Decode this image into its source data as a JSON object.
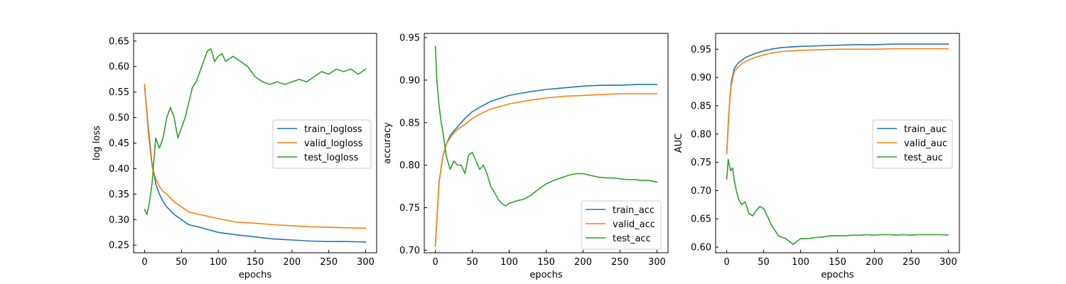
{
  "colors": {
    "blue": "#1f77b4",
    "orange": "#ff7f0e",
    "green": "#2ca02c"
  },
  "chart_data": [
    {
      "type": "line",
      "xlabel": "epochs",
      "ylabel": "log loss",
      "xlim": [
        -15,
        315
      ],
      "ylim": [
        0.235,
        0.665
      ],
      "xticks": [
        0,
        50,
        100,
        150,
        200,
        250,
        300
      ],
      "xtick_labels": [
        "0",
        "50",
        "100",
        "150",
        "200",
        "250",
        "300"
      ],
      "yticks": [
        0.25,
        0.3,
        0.35,
        0.4,
        0.45,
        0.5,
        0.55,
        0.6,
        0.65
      ],
      "ytick_labels": [
        "0.25",
        "0.30",
        "0.35",
        "0.40",
        "0.45",
        "0.50",
        "0.55",
        "0.60",
        "0.65"
      ],
      "legend_position": "center-right",
      "series": [
        {
          "name": "train_logloss",
          "color": "#1f77b4",
          "x": [
            0,
            5,
            10,
            15,
            20,
            25,
            30,
            40,
            50,
            60,
            75,
            100,
            125,
            150,
            175,
            200,
            225,
            250,
            275,
            300
          ],
          "y": [
            0.56,
            0.48,
            0.41,
            0.37,
            0.35,
            0.335,
            0.325,
            0.31,
            0.3,
            0.29,
            0.285,
            0.275,
            0.27,
            0.266,
            0.262,
            0.26,
            0.258,
            0.257,
            0.257,
            0.256
          ]
        },
        {
          "name": "valid_logloss",
          "color": "#ff7f0e",
          "x": [
            0,
            5,
            10,
            15,
            20,
            25,
            30,
            40,
            50,
            60,
            75,
            100,
            125,
            150,
            175,
            200,
            225,
            250,
            275,
            300
          ],
          "y": [
            0.565,
            0.47,
            0.405,
            0.38,
            0.365,
            0.355,
            0.35,
            0.335,
            0.325,
            0.315,
            0.31,
            0.302,
            0.295,
            0.293,
            0.29,
            0.288,
            0.286,
            0.285,
            0.284,
            0.283
          ]
        },
        {
          "name": "test_logloss",
          "color": "#2ca02c",
          "x": [
            0,
            3,
            6,
            10,
            15,
            20,
            25,
            30,
            35,
            40,
            45,
            50,
            55,
            60,
            65,
            70,
            75,
            80,
            85,
            90,
            95,
            100,
            105,
            110,
            115,
            120,
            130,
            140,
            150,
            160,
            170,
            180,
            190,
            200,
            210,
            220,
            230,
            240,
            250,
            260,
            270,
            280,
            290,
            300
          ],
          "y": [
            0.32,
            0.31,
            0.33,
            0.37,
            0.46,
            0.44,
            0.46,
            0.5,
            0.52,
            0.5,
            0.46,
            0.48,
            0.5,
            0.53,
            0.56,
            0.57,
            0.59,
            0.61,
            0.63,
            0.635,
            0.61,
            0.62,
            0.625,
            0.61,
            0.615,
            0.62,
            0.61,
            0.6,
            0.58,
            0.57,
            0.565,
            0.57,
            0.565,
            0.57,
            0.575,
            0.57,
            0.58,
            0.59,
            0.585,
            0.595,
            0.59,
            0.595,
            0.585,
            0.595
          ]
        }
      ]
    },
    {
      "type": "line",
      "xlabel": "epochs",
      "ylabel": "accuracy",
      "xlim": [
        -15,
        315
      ],
      "ylim": [
        0.697,
        0.955
      ],
      "xticks": [
        0,
        50,
        100,
        150,
        200,
        250,
        300
      ],
      "xtick_labels": [
        "0",
        "50",
        "100",
        "150",
        "200",
        "250",
        "300"
      ],
      "yticks": [
        0.7,
        0.75,
        0.8,
        0.85,
        0.9,
        0.95
      ],
      "ytick_labels": [
        "0.70",
        "0.75",
        "0.80",
        "0.85",
        "0.90",
        "0.95"
      ],
      "legend_position": "lower-right",
      "series": [
        {
          "name": "train_acc",
          "color": "#1f77b4",
          "x": [
            0,
            5,
            10,
            15,
            20,
            25,
            30,
            40,
            50,
            60,
            75,
            100,
            125,
            150,
            175,
            200,
            225,
            250,
            275,
            300
          ],
          "y": [
            0.705,
            0.78,
            0.81,
            0.825,
            0.835,
            0.84,
            0.845,
            0.855,
            0.863,
            0.868,
            0.875,
            0.882,
            0.886,
            0.889,
            0.891,
            0.893,
            0.894,
            0.894,
            0.895,
            0.895
          ]
        },
        {
          "name": "valid_acc",
          "color": "#ff7f0e",
          "x": [
            0,
            5,
            10,
            15,
            20,
            25,
            30,
            40,
            50,
            60,
            75,
            100,
            125,
            150,
            175,
            200,
            225,
            250,
            275,
            300
          ],
          "y": [
            0.705,
            0.78,
            0.81,
            0.825,
            0.832,
            0.838,
            0.842,
            0.848,
            0.855,
            0.86,
            0.866,
            0.872,
            0.876,
            0.879,
            0.881,
            0.882,
            0.883,
            0.884,
            0.884,
            0.884
          ]
        },
        {
          "name": "test_acc",
          "color": "#2ca02c",
          "x": [
            0,
            2,
            5,
            8,
            10,
            15,
            20,
            25,
            30,
            35,
            40,
            45,
            50,
            55,
            60,
            65,
            70,
            75,
            80,
            85,
            90,
            95,
            100,
            110,
            120,
            130,
            140,
            150,
            160,
            170,
            180,
            190,
            200,
            210,
            220,
            230,
            240,
            250,
            260,
            270,
            280,
            290,
            300
          ],
          "y": [
            0.94,
            0.9,
            0.87,
            0.85,
            0.84,
            0.81,
            0.795,
            0.805,
            0.8,
            0.8,
            0.79,
            0.812,
            0.815,
            0.805,
            0.795,
            0.8,
            0.79,
            0.775,
            0.768,
            0.76,
            0.755,
            0.752,
            0.755,
            0.758,
            0.76,
            0.765,
            0.772,
            0.778,
            0.782,
            0.785,
            0.788,
            0.79,
            0.79,
            0.788,
            0.786,
            0.785,
            0.785,
            0.784,
            0.783,
            0.783,
            0.782,
            0.782,
            0.78
          ]
        }
      ]
    },
    {
      "type": "line",
      "xlabel": "epochs",
      "ylabel": "AUC",
      "xlim": [
        -15,
        315
      ],
      "ylim": [
        0.59,
        0.978
      ],
      "xticks": [
        0,
        50,
        100,
        150,
        200,
        250,
        300
      ],
      "xtick_labels": [
        "0",
        "50",
        "100",
        "150",
        "200",
        "250",
        "300"
      ],
      "yticks": [
        0.6,
        0.65,
        0.7,
        0.75,
        0.8,
        0.85,
        0.9,
        0.95
      ],
      "ytick_labels": [
        "0.60",
        "0.65",
        "0.70",
        "0.75",
        "0.80",
        "0.85",
        "0.90",
        "0.95"
      ],
      "legend_position": "center-right",
      "series": [
        {
          "name": "train_auc",
          "color": "#1f77b4",
          "x": [
            0,
            3,
            6,
            10,
            15,
            20,
            25,
            30,
            40,
            50,
            60,
            75,
            100,
            125,
            150,
            175,
            200,
            225,
            250,
            275,
            300
          ],
          "y": [
            0.765,
            0.84,
            0.89,
            0.915,
            0.925,
            0.93,
            0.935,
            0.938,
            0.943,
            0.947,
            0.95,
            0.953,
            0.955,
            0.956,
            0.957,
            0.958,
            0.958,
            0.959,
            0.959,
            0.959,
            0.959
          ]
        },
        {
          "name": "valid_auc",
          "color": "#ff7f0e",
          "x": [
            0,
            3,
            6,
            10,
            15,
            20,
            25,
            30,
            40,
            50,
            60,
            75,
            100,
            125,
            150,
            175,
            200,
            225,
            250,
            275,
            300
          ],
          "y": [
            0.765,
            0.84,
            0.885,
            0.91,
            0.918,
            0.924,
            0.928,
            0.931,
            0.936,
            0.94,
            0.943,
            0.946,
            0.948,
            0.949,
            0.95,
            0.95,
            0.95,
            0.951,
            0.951,
            0.951,
            0.951
          ]
        },
        {
          "name": "test_auc",
          "color": "#2ca02c",
          "x": [
            0,
            2,
            5,
            8,
            10,
            13,
            16,
            20,
            25,
            30,
            35,
            40,
            45,
            50,
            55,
            60,
            65,
            70,
            80,
            90,
            100,
            110,
            120,
            130,
            140,
            150,
            160,
            170,
            180,
            190,
            200,
            210,
            220,
            230,
            240,
            250,
            260,
            270,
            280,
            290,
            300
          ],
          "y": [
            0.72,
            0.755,
            0.735,
            0.74,
            0.72,
            0.7,
            0.685,
            0.675,
            0.68,
            0.66,
            0.655,
            0.665,
            0.672,
            0.668,
            0.655,
            0.64,
            0.63,
            0.62,
            0.615,
            0.605,
            0.615,
            0.615,
            0.617,
            0.618,
            0.62,
            0.62,
            0.62,
            0.621,
            0.621,
            0.622,
            0.621,
            0.622,
            0.622,
            0.621,
            0.622,
            0.621,
            0.622,
            0.622,
            0.622,
            0.622,
            0.621
          ]
        }
      ]
    }
  ]
}
